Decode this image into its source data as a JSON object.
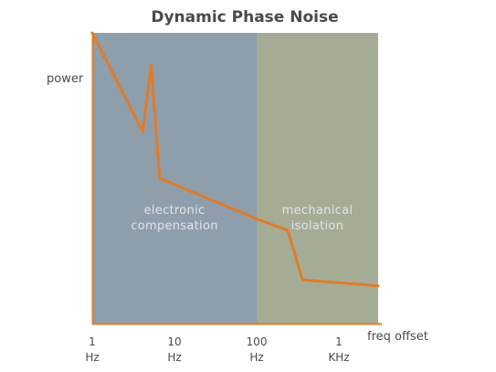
{
  "chart_data": {
    "type": "line",
    "title": "Dynamic Phase Noise",
    "ylabel": "power",
    "xlabel": "freq offset",
    "x_scale": "log",
    "xlim": [
      1,
      3000
    ],
    "ylim": [
      0,
      100
    ],
    "x_ticks": [
      {
        "value": 1,
        "line1": "1",
        "line2": "Hz"
      },
      {
        "value": 10,
        "line1": "10",
        "line2": "Hz"
      },
      {
        "value": 100,
        "line1": "100",
        "line2": "Hz"
      },
      {
        "value": 1000,
        "line1": "1",
        "line2": "KHz"
      }
    ],
    "regions": [
      {
        "name": "electronic compensation",
        "lines": [
          "electronic",
          "compensation"
        ],
        "x_start": 1,
        "x_end": 100,
        "color": "#8f9eab"
      },
      {
        "name": "mechanical isolation",
        "lines": [
          "mechanical",
          "isolation"
        ],
        "x_start": 100,
        "x_end": 3000,
        "color": "#a5ac95"
      }
    ],
    "series": [
      {
        "color": "#e07b2a",
        "points": [
          {
            "x": 1,
            "y": 100
          },
          {
            "x": 4.1,
            "y": 66
          },
          {
            "x": 5.2,
            "y": 89
          },
          {
            "x": 6.6,
            "y": 50
          },
          {
            "x": 100,
            "y": 36
          },
          {
            "x": 240,
            "y": 32
          },
          {
            "x": 360,
            "y": 15
          },
          {
            "x": 3000,
            "y": 13
          }
        ]
      }
    ],
    "grid": false
  },
  "colors": {
    "axis": "#e07b2a",
    "text": "#4a4a4a",
    "region_text": "#dfe5e8"
  }
}
